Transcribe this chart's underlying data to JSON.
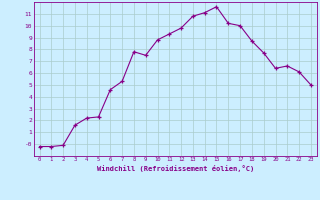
{
  "x": [
    0,
    1,
    2,
    3,
    4,
    5,
    6,
    7,
    8,
    9,
    10,
    11,
    12,
    13,
    14,
    15,
    16,
    17,
    18,
    19,
    20,
    21,
    22,
    23
  ],
  "y": [
    -0.2,
    -0.2,
    -0.1,
    1.6,
    2.2,
    2.3,
    4.6,
    5.3,
    7.8,
    7.5,
    8.8,
    9.3,
    9.8,
    10.8,
    11.1,
    11.6,
    10.2,
    10.0,
    8.7,
    7.7,
    6.4,
    6.6,
    6.1,
    5.0
  ],
  "xlim": [
    -0.5,
    23.5
  ],
  "ylim": [
    -1.0,
    12.0
  ],
  "yticks": [
    0,
    1,
    2,
    3,
    4,
    5,
    6,
    7,
    8,
    9,
    10,
    11
  ],
  "ytick_labels": [
    "-0",
    "1",
    "2",
    "3",
    "4",
    "5",
    "6",
    "7",
    "8",
    "9",
    "10",
    "11"
  ],
  "xticks": [
    0,
    1,
    2,
    3,
    4,
    5,
    6,
    7,
    8,
    9,
    10,
    11,
    12,
    13,
    14,
    15,
    16,
    17,
    18,
    19,
    20,
    21,
    22,
    23
  ],
  "xtick_labels": [
    "0",
    "1",
    "2",
    "3",
    "4",
    "5",
    "6",
    "7",
    "8",
    "9",
    "10",
    "11",
    "12",
    "13",
    "14",
    "15",
    "16",
    "17",
    "18",
    "19",
    "20",
    "21",
    "22",
    "23"
  ],
  "xlabel": "Windchill (Refroidissement éolien,°C)",
  "line_color": "#880088",
  "marker": "+",
  "bg_color": "#cceeff",
  "grid_color": "#aacccc",
  "xlabel_color": "#880088",
  "tick_color": "#880088",
  "spine_color": "#880088"
}
